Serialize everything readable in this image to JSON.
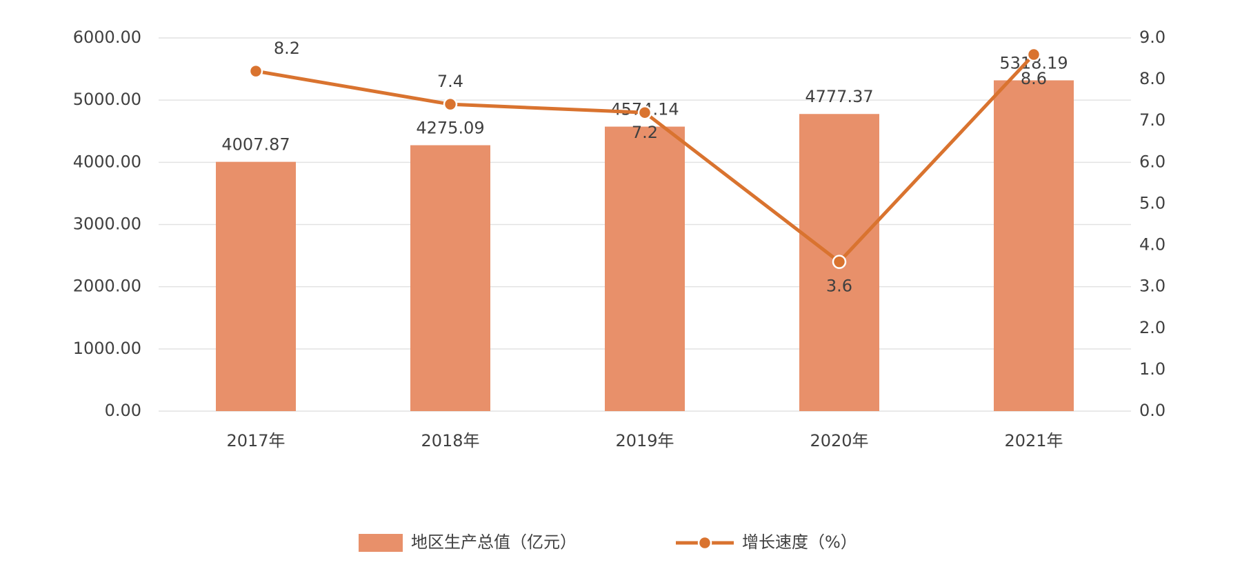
{
  "chart_data": {
    "type": "bar-line",
    "categories": [
      "2017年",
      "2018年",
      "2019年",
      "2020年",
      "2021年"
    ],
    "series": [
      {
        "name": "地区生产总值（亿元）",
        "color": "#e8906a",
        "type": "bar",
        "values": [
          4007.87,
          4275.09,
          4574.14,
          4777.37,
          5318.19
        ]
      },
      {
        "name": "增长速度（%）",
        "color": "#d9732f",
        "type": "line",
        "axis": "y2",
        "values": [
          8.2,
          7.4,
          7.2,
          3.6,
          8.6
        ]
      }
    ],
    "ylim": [
      0,
      6000
    ],
    "yticks": [
      {
        "value": 0,
        "label": "0.00"
      },
      {
        "value": 1000,
        "label": "1000.00"
      },
      {
        "value": 2000,
        "label": "2000.00"
      },
      {
        "value": 3000,
        "label": "3000.00"
      },
      {
        "value": 4000,
        "label": "4000.00"
      },
      {
        "value": 5000,
        "label": "5000.00"
      },
      {
        "value": 6000,
        "label": "6000.00"
      }
    ],
    "y2lim": [
      0,
      9
    ],
    "y2ticks": [
      {
        "value": 0,
        "label": "0.0"
      },
      {
        "value": 1,
        "label": "1.0"
      },
      {
        "value": 2,
        "label": "2.0"
      },
      {
        "value": 3,
        "label": "3.0"
      },
      {
        "value": 4,
        "label": "4.0"
      },
      {
        "value": 5,
        "label": "5.0"
      },
      {
        "value": 6,
        "label": "6.0"
      },
      {
        "value": 7,
        "label": "7.0"
      },
      {
        "value": 8,
        "label": "8.0"
      },
      {
        "value": 9,
        "label": "9.0"
      }
    ],
    "grid": true,
    "legend": "bottom"
  }
}
